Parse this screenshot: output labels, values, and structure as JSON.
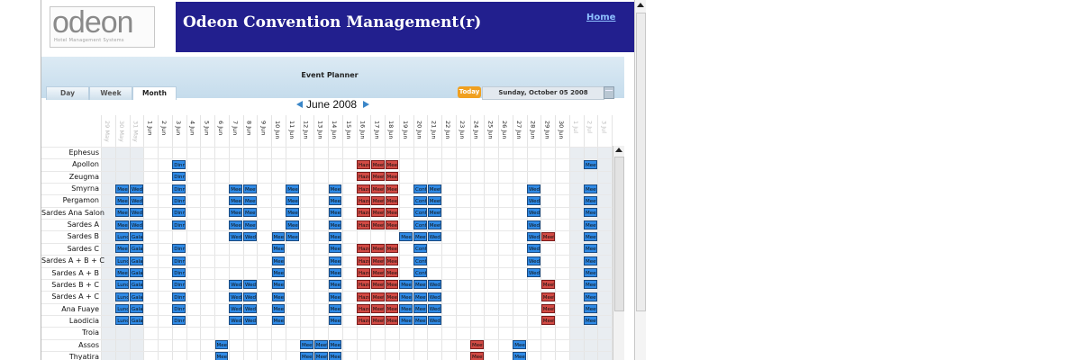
{
  "app": {
    "logo_text": "odeon",
    "logo_sub": "Hotel Management Systems",
    "title": "Odeon Convention Management(r)",
    "home_link": "Home"
  },
  "planner": {
    "title": "Event Planner",
    "tabs": [
      {
        "label": "Day",
        "active": false
      },
      {
        "label": "Week",
        "active": false
      },
      {
        "label": "Month",
        "active": true
      }
    ],
    "today_label": "Today",
    "current_date": "Sunday, October 05 2008",
    "month_label": "June 2008"
  },
  "days": [
    "29 May",
    "30 May",
    "31 May",
    "1 Jun",
    "2 Jun",
    "3 Jun",
    "4 Jun",
    "5 Jun",
    "6 Jun",
    "7 Jun",
    "8 Jun",
    "9 Jun",
    "10 Jun",
    "11 Jun",
    "12 Jun",
    "13 Jun",
    "14 Jun",
    "15 Jun",
    "16 Jun",
    "17 Jun",
    "18 Jun",
    "19 Jun",
    "20 Jun",
    "21 Jun",
    "22 Jun",
    "23 Jun",
    "24 Jun",
    "25 Jun",
    "26 Jun",
    "27 Jun",
    "28 Jun",
    "29 Jun",
    "30 Jun",
    "1 Jul",
    "2 Jul",
    "3 Jul"
  ],
  "rooms": [
    "Ephesus",
    "Apollon",
    "Zeugma",
    "Smyrna",
    "Pergamon",
    "Sardes Ana Salon",
    "Sardes A",
    "Sardes B",
    "Sardes C",
    "Sardes A + B + C",
    "Sardes A + B",
    "Sardes B + C",
    "Sardes A + C",
    "Ana Fuaye",
    "Laodicia",
    "Troia",
    "Assos",
    "Thyatira"
  ],
  "events": [
    {
      "row": 1,
      "day": 5,
      "label": "Dinn",
      "color": "b"
    },
    {
      "row": 1,
      "day": 18,
      "label": "Hazı",
      "color": "r"
    },
    {
      "row": 1,
      "day": 19,
      "label": "Meeti",
      "color": "r"
    },
    {
      "row": 1,
      "day": 20,
      "label": "Meeti",
      "color": "r"
    },
    {
      "row": 1,
      "day": 34,
      "label": "Meeti",
      "color": "b"
    },
    {
      "row": 2,
      "day": 5,
      "label": "Dinn",
      "color": "b"
    },
    {
      "row": 2,
      "day": 18,
      "label": "Hazı",
      "color": "r"
    },
    {
      "row": 2,
      "day": 19,
      "label": "Meeti",
      "color": "r"
    },
    {
      "row": 2,
      "day": 20,
      "label": "Meeti",
      "color": "r"
    },
    {
      "row": 3,
      "day": 1,
      "label": "Meeti",
      "color": "b"
    },
    {
      "row": 3,
      "day": 2,
      "label": "Weda",
      "color": "b"
    },
    {
      "row": 3,
      "day": 5,
      "label": "Dinn",
      "color": "b"
    },
    {
      "row": 3,
      "day": 9,
      "label": "Meeti",
      "color": "b"
    },
    {
      "row": 3,
      "day": 10,
      "label": "Meeti",
      "color": "b"
    },
    {
      "row": 3,
      "day": 13,
      "label": "Meeti",
      "color": "b"
    },
    {
      "row": 3,
      "day": 16,
      "label": "Meeti",
      "color": "b"
    },
    {
      "row": 3,
      "day": 18,
      "label": "Hazı",
      "color": "r"
    },
    {
      "row": 3,
      "day": 19,
      "label": "Meeti",
      "color": "r"
    },
    {
      "row": 3,
      "day": 20,
      "label": "Meeti",
      "color": "r"
    },
    {
      "row": 3,
      "day": 22,
      "label": "Conf",
      "color": "b"
    },
    {
      "row": 3,
      "day": 23,
      "label": "Meeti",
      "color": "b"
    },
    {
      "row": 3,
      "day": 30,
      "label": "Weda",
      "color": "b"
    },
    {
      "row": 3,
      "day": 34,
      "label": "Meeti",
      "color": "b"
    },
    {
      "row": 4,
      "day": 1,
      "label": "Meeti",
      "color": "b"
    },
    {
      "row": 4,
      "day": 2,
      "label": "Weda",
      "color": "b"
    },
    {
      "row": 4,
      "day": 5,
      "label": "Dinn",
      "color": "b"
    },
    {
      "row": 4,
      "day": 9,
      "label": "Meeti",
      "color": "b"
    },
    {
      "row": 4,
      "day": 10,
      "label": "Meeti",
      "color": "b"
    },
    {
      "row": 4,
      "day": 13,
      "label": "Meeti",
      "color": "b"
    },
    {
      "row": 4,
      "day": 16,
      "label": "Meeti",
      "color": "b"
    },
    {
      "row": 4,
      "day": 18,
      "label": "Hazı",
      "color": "r"
    },
    {
      "row": 4,
      "day": 19,
      "label": "Meeti",
      "color": "r"
    },
    {
      "row": 4,
      "day": 20,
      "label": "Meeti",
      "color": "r"
    },
    {
      "row": 4,
      "day": 22,
      "label": "Conf",
      "color": "b"
    },
    {
      "row": 4,
      "day": 23,
      "label": "Meeti",
      "color": "b"
    },
    {
      "row": 4,
      "day": 30,
      "label": "Weda",
      "color": "b"
    },
    {
      "row": 4,
      "day": 34,
      "label": "Meeti",
      "color": "b"
    },
    {
      "row": 5,
      "day": 1,
      "label": "Meeti",
      "color": "b"
    },
    {
      "row": 5,
      "day": 2,
      "label": "Weda",
      "color": "b"
    },
    {
      "row": 5,
      "day": 5,
      "label": "Dinn",
      "color": "b"
    },
    {
      "row": 5,
      "day": 9,
      "label": "Meeti",
      "color": "b"
    },
    {
      "row": 5,
      "day": 10,
      "label": "Meeti",
      "color": "b"
    },
    {
      "row": 5,
      "day": 13,
      "label": "Meeti",
      "color": "b"
    },
    {
      "row": 5,
      "day": 16,
      "label": "Meeti",
      "color": "b"
    },
    {
      "row": 5,
      "day": 18,
      "label": "Hazı",
      "color": "r"
    },
    {
      "row": 5,
      "day": 19,
      "label": "Meeti",
      "color": "r"
    },
    {
      "row": 5,
      "day": 20,
      "label": "Meeti",
      "color": "r"
    },
    {
      "row": 5,
      "day": 22,
      "label": "Conf",
      "color": "b"
    },
    {
      "row": 5,
      "day": 23,
      "label": "Meeti",
      "color": "b"
    },
    {
      "row": 5,
      "day": 30,
      "label": "Weda",
      "color": "b"
    },
    {
      "row": 5,
      "day": 34,
      "label": "Meeti",
      "color": "b"
    },
    {
      "row": 6,
      "day": 1,
      "label": "Meeti",
      "color": "b"
    },
    {
      "row": 6,
      "day": 2,
      "label": "Weda",
      "color": "b"
    },
    {
      "row": 6,
      "day": 5,
      "label": "Dinn",
      "color": "b"
    },
    {
      "row": 6,
      "day": 9,
      "label": "Meeti",
      "color": "b"
    },
    {
      "row": 6,
      "day": 10,
      "label": "Meeti",
      "color": "b"
    },
    {
      "row": 6,
      "day": 13,
      "label": "Meeti",
      "color": "b"
    },
    {
      "row": 6,
      "day": 16,
      "label": "Meeti",
      "color": "b"
    },
    {
      "row": 6,
      "day": 18,
      "label": "Hazı",
      "color": "r"
    },
    {
      "row": 6,
      "day": 19,
      "label": "Meeti",
      "color": "r"
    },
    {
      "row": 6,
      "day": 20,
      "label": "Meeti",
      "color": "r"
    },
    {
      "row": 6,
      "day": 22,
      "label": "Conf",
      "color": "b"
    },
    {
      "row": 6,
      "day": 23,
      "label": "Meeti",
      "color": "b"
    },
    {
      "row": 6,
      "day": 30,
      "label": "Weda",
      "color": "b"
    },
    {
      "row": 6,
      "day": 34,
      "label": "Meeti",
      "color": "b"
    },
    {
      "row": 7,
      "day": 1,
      "label": "Lunc",
      "color": "b"
    },
    {
      "row": 7,
      "day": 2,
      "label": "Gala",
      "color": "b"
    },
    {
      "row": 7,
      "day": 9,
      "label": "Weda",
      "color": "b"
    },
    {
      "row": 7,
      "day": 10,
      "label": "Weda",
      "color": "b"
    },
    {
      "row": 7,
      "day": 12,
      "label": "Meeti",
      "color": "b"
    },
    {
      "row": 7,
      "day": 13,
      "label": "Meeti",
      "color": "b"
    },
    {
      "row": 7,
      "day": 16,
      "label": "Meeti",
      "color": "b"
    },
    {
      "row": 7,
      "day": 21,
      "label": "Meeti",
      "color": "b"
    },
    {
      "row": 7,
      "day": 22,
      "label": "Meeti",
      "color": "b"
    },
    {
      "row": 7,
      "day": 23,
      "label": "Weda",
      "color": "b"
    },
    {
      "row": 7,
      "day": 30,
      "label": "Weda",
      "color": "b"
    },
    {
      "row": 7,
      "day": 31,
      "label": "Meeti",
      "color": "r"
    },
    {
      "row": 7,
      "day": 34,
      "label": "Meeti",
      "color": "b"
    },
    {
      "row": 8,
      "day": 1,
      "label": "Meeti",
      "color": "b"
    },
    {
      "row": 8,
      "day": 2,
      "label": "Gala",
      "color": "b"
    },
    {
      "row": 8,
      "day": 5,
      "label": "Dinn",
      "color": "b"
    },
    {
      "row": 8,
      "day": 12,
      "label": "Meeti",
      "color": "b"
    },
    {
      "row": 8,
      "day": 16,
      "label": "Meeti",
      "color": "b"
    },
    {
      "row": 8,
      "day": 18,
      "label": "Hazı",
      "color": "r"
    },
    {
      "row": 8,
      "day": 19,
      "label": "Meeti",
      "color": "r"
    },
    {
      "row": 8,
      "day": 20,
      "label": "Meeti",
      "color": "r"
    },
    {
      "row": 8,
      "day": 22,
      "label": "Conf",
      "color": "b"
    },
    {
      "row": 8,
      "day": 30,
      "label": "Weda",
      "color": "b"
    },
    {
      "row": 8,
      "day": 34,
      "label": "Meeti",
      "color": "b"
    },
    {
      "row": 9,
      "day": 1,
      "label": "Lunc",
      "color": "b"
    },
    {
      "row": 9,
      "day": 2,
      "label": "Gala",
      "color": "b"
    },
    {
      "row": 9,
      "day": 5,
      "label": "Dinn",
      "color": "b"
    },
    {
      "row": 9,
      "day": 12,
      "label": "Meeti",
      "color": "b"
    },
    {
      "row": 9,
      "day": 16,
      "label": "Meeti",
      "color": "b"
    },
    {
      "row": 9,
      "day": 18,
      "label": "Hazı",
      "color": "r"
    },
    {
      "row": 9,
      "day": 19,
      "label": "Meeti",
      "color": "r"
    },
    {
      "row": 9,
      "day": 20,
      "label": "Meeti",
      "color": "r"
    },
    {
      "row": 9,
      "day": 22,
      "label": "Conf",
      "color": "b"
    },
    {
      "row": 9,
      "day": 30,
      "label": "Weda",
      "color": "b"
    },
    {
      "row": 9,
      "day": 34,
      "label": "Meeti",
      "color": "b"
    },
    {
      "row": 10,
      "day": 1,
      "label": "Meeti",
      "color": "b"
    },
    {
      "row": 10,
      "day": 2,
      "label": "Gala",
      "color": "b"
    },
    {
      "row": 10,
      "day": 5,
      "label": "Dinn",
      "color": "b"
    },
    {
      "row": 10,
      "day": 12,
      "label": "Meeti",
      "color": "b"
    },
    {
      "row": 10,
      "day": 16,
      "label": "Meeti",
      "color": "b"
    },
    {
      "row": 10,
      "day": 18,
      "label": "Hazı",
      "color": "r"
    },
    {
      "row": 10,
      "day": 19,
      "label": "Meeti",
      "color": "r"
    },
    {
      "row": 10,
      "day": 20,
      "label": "Meeti",
      "color": "r"
    },
    {
      "row": 10,
      "day": 22,
      "label": "Conf",
      "color": "b"
    },
    {
      "row": 10,
      "day": 30,
      "label": "Weda",
      "color": "b"
    },
    {
      "row": 10,
      "day": 34,
      "label": "Meeti",
      "color": "b"
    },
    {
      "row": 11,
      "day": 1,
      "label": "Lunc",
      "color": "b"
    },
    {
      "row": 11,
      "day": 2,
      "label": "Gala",
      "color": "b"
    },
    {
      "row": 11,
      "day": 5,
      "label": "Dinn",
      "color": "b"
    },
    {
      "row": 11,
      "day": 9,
      "label": "Weda",
      "color": "b"
    },
    {
      "row": 11,
      "day": 10,
      "label": "Weda",
      "color": "b"
    },
    {
      "row": 11,
      "day": 12,
      "label": "Meeti",
      "color": "b"
    },
    {
      "row": 11,
      "day": 16,
      "label": "Meeti",
      "color": "b"
    },
    {
      "row": 11,
      "day": 18,
      "label": "Hazı",
      "color": "r"
    },
    {
      "row": 11,
      "day": 19,
      "label": "Meeti",
      "color": "r"
    },
    {
      "row": 11,
      "day": 20,
      "label": "Meeti",
      "color": "r"
    },
    {
      "row": 11,
      "day": 21,
      "label": "Meeti",
      "color": "b"
    },
    {
      "row": 11,
      "day": 22,
      "label": "Meeti",
      "color": "b"
    },
    {
      "row": 11,
      "day": 23,
      "label": "Weda",
      "color": "b"
    },
    {
      "row": 11,
      "day": 31,
      "label": "Meeti",
      "color": "r"
    },
    {
      "row": 11,
      "day": 34,
      "label": "Meeti",
      "color": "b"
    },
    {
      "row": 12,
      "day": 1,
      "label": "Lunc",
      "color": "b"
    },
    {
      "row": 12,
      "day": 2,
      "label": "Gala",
      "color": "b"
    },
    {
      "row": 12,
      "day": 5,
      "label": "Dinn",
      "color": "b"
    },
    {
      "row": 12,
      "day": 9,
      "label": "Weda",
      "color": "b"
    },
    {
      "row": 12,
      "day": 10,
      "label": "Weda",
      "color": "b"
    },
    {
      "row": 12,
      "day": 12,
      "label": "Meeti",
      "color": "b"
    },
    {
      "row": 12,
      "day": 16,
      "label": "Meeti",
      "color": "b"
    },
    {
      "row": 12,
      "day": 18,
      "label": "Hazı",
      "color": "r"
    },
    {
      "row": 12,
      "day": 19,
      "label": "Meeti",
      "color": "r"
    },
    {
      "row": 12,
      "day": 20,
      "label": "Meeti",
      "color": "r"
    },
    {
      "row": 12,
      "day": 21,
      "label": "Meeti",
      "color": "b"
    },
    {
      "row": 12,
      "day": 22,
      "label": "Meeti",
      "color": "b"
    },
    {
      "row": 12,
      "day": 23,
      "label": "Weda",
      "color": "b"
    },
    {
      "row": 12,
      "day": 31,
      "label": "Meeti",
      "color": "r"
    },
    {
      "row": 12,
      "day": 34,
      "label": "Meeti",
      "color": "b"
    },
    {
      "row": 13,
      "day": 1,
      "label": "Lunc",
      "color": "b"
    },
    {
      "row": 13,
      "day": 2,
      "label": "Gala",
      "color": "b"
    },
    {
      "row": 13,
      "day": 5,
      "label": "Dinn",
      "color": "b"
    },
    {
      "row": 13,
      "day": 9,
      "label": "Weda",
      "color": "b"
    },
    {
      "row": 13,
      "day": 10,
      "label": "Weda",
      "color": "b"
    },
    {
      "row": 13,
      "day": 12,
      "label": "Meeti",
      "color": "b"
    },
    {
      "row": 13,
      "day": 16,
      "label": "Meeti",
      "color": "b"
    },
    {
      "row": 13,
      "day": 18,
      "label": "Hazı",
      "color": "r"
    },
    {
      "row": 13,
      "day": 19,
      "label": "Meeti",
      "color": "r"
    },
    {
      "row": 13,
      "day": 20,
      "label": "Meeti",
      "color": "r"
    },
    {
      "row": 13,
      "day": 21,
      "label": "Meeti",
      "color": "b"
    },
    {
      "row": 13,
      "day": 22,
      "label": "Meeti",
      "color": "b"
    },
    {
      "row": 13,
      "day": 23,
      "label": "Weda",
      "color": "b"
    },
    {
      "row": 13,
      "day": 31,
      "label": "Meeti",
      "color": "r"
    },
    {
      "row": 13,
      "day": 34,
      "label": "Meeti",
      "color": "b"
    },
    {
      "row": 14,
      "day": 1,
      "label": "Lunc",
      "color": "b"
    },
    {
      "row": 14,
      "day": 2,
      "label": "Gala",
      "color": "b"
    },
    {
      "row": 14,
      "day": 5,
      "label": "Dinn",
      "color": "b"
    },
    {
      "row": 14,
      "day": 9,
      "label": "Weda",
      "color": "b"
    },
    {
      "row": 14,
      "day": 10,
      "label": "Weda",
      "color": "b"
    },
    {
      "row": 14,
      "day": 12,
      "label": "Meeti",
      "color": "b"
    },
    {
      "row": 14,
      "day": 16,
      "label": "Meeti",
      "color": "b"
    },
    {
      "row": 14,
      "day": 18,
      "label": "Hazı",
      "color": "r"
    },
    {
      "row": 14,
      "day": 19,
      "label": "Meeti",
      "color": "r"
    },
    {
      "row": 14,
      "day": 20,
      "label": "Meeti",
      "color": "r"
    },
    {
      "row": 14,
      "day": 21,
      "label": "Meeti",
      "color": "b"
    },
    {
      "row": 14,
      "day": 22,
      "label": "Meeti",
      "color": "b"
    },
    {
      "row": 14,
      "day": 23,
      "label": "Weda",
      "color": "b"
    },
    {
      "row": 14,
      "day": 31,
      "label": "Meeti",
      "color": "r"
    },
    {
      "row": 14,
      "day": 34,
      "label": "Meeti",
      "color": "b"
    },
    {
      "row": 16,
      "day": 8,
      "label": "Meeti",
      "color": "b"
    },
    {
      "row": 16,
      "day": 14,
      "label": "Meeti",
      "color": "b"
    },
    {
      "row": 16,
      "day": 15,
      "label": "Meeti",
      "color": "b"
    },
    {
      "row": 16,
      "day": 16,
      "label": "Meeti",
      "color": "b"
    },
    {
      "row": 16,
      "day": 26,
      "label": "Meeti",
      "color": "r"
    },
    {
      "row": 16,
      "day": 29,
      "label": "Meeti",
      "color": "b"
    },
    {
      "row": 17,
      "day": 8,
      "label": "Meeti",
      "color": "b"
    },
    {
      "row": 17,
      "day": 14,
      "label": "Meeti",
      "color": "b"
    },
    {
      "row": 17,
      "day": 15,
      "label": "Meeti",
      "color": "b"
    },
    {
      "row": 17,
      "day": 16,
      "label": "Meeti",
      "color": "b"
    },
    {
      "row": 17,
      "day": 26,
      "label": "Meeti",
      "color": "r"
    },
    {
      "row": 17,
      "day": 29,
      "label": "Meeti",
      "color": "b"
    }
  ]
}
